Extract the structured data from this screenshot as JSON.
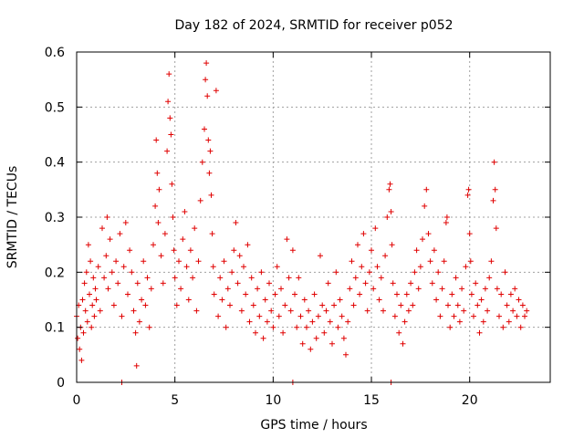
{
  "chart_data": {
    "type": "scatter",
    "title": "Day 182 of 2024, SRMTID for receiver p052",
    "xlabel": "GPS time / hours",
    "ylabel": "SRMTID / TECUs",
    "xlim": [
      0,
      24.1
    ],
    "ylim": [
      0,
      0.6
    ],
    "xticks": [
      0,
      5,
      10,
      15,
      20
    ],
    "yticks": [
      0,
      0.1,
      0.2,
      0.3,
      0.4,
      0.5,
      0.6
    ],
    "xtick_labels": [
      "0",
      "5",
      "10",
      "15",
      "20"
    ],
    "ytick_labels": [
      "0",
      "0.1",
      "0.2",
      "0.3",
      "0.4",
      "0.5",
      "0.6"
    ],
    "grid": true,
    "marker": "+",
    "color": "#e00000",
    "series": [
      {
        "name": "SRMTID",
        "points": [
          [
            0.0,
            0.12
          ],
          [
            0.05,
            0.08
          ],
          [
            0.1,
            0.14
          ],
          [
            0.15,
            0.06
          ],
          [
            0.2,
            0.1
          ],
          [
            0.25,
            0.04
          ],
          [
            0.3,
            0.15
          ],
          [
            0.35,
            0.09
          ],
          [
            0.4,
            0.18
          ],
          [
            0.45,
            0.13
          ],
          [
            0.5,
            0.2
          ],
          [
            0.55,
            0.11
          ],
          [
            0.6,
            0.25
          ],
          [
            0.65,
            0.16
          ],
          [
            0.7,
            0.22
          ],
          [
            0.75,
            0.1
          ],
          [
            0.8,
            0.14
          ],
          [
            0.85,
            0.19
          ],
          [
            0.9,
            0.12
          ],
          [
            0.95,
            0.17
          ],
          [
            1.0,
            0.15
          ],
          [
            1.1,
            0.21
          ],
          [
            1.2,
            0.13
          ],
          [
            1.3,
            0.28
          ],
          [
            1.4,
            0.19
          ],
          [
            1.5,
            0.23
          ],
          [
            1.55,
            0.3
          ],
          [
            1.6,
            0.17
          ],
          [
            1.7,
            0.26
          ],
          [
            1.8,
            0.2
          ],
          [
            1.9,
            0.14
          ],
          [
            2.0,
            0.22
          ],
          [
            2.1,
            0.18
          ],
          [
            2.2,
            0.27
          ],
          [
            2.3,
            0.12
          ],
          [
            2.4,
            0.21
          ],
          [
            2.5,
            0.29
          ],
          [
            2.6,
            0.16
          ],
          [
            2.7,
            0.24
          ],
          [
            2.8,
            0.2
          ],
          [
            2.9,
            0.13
          ],
          [
            3.0,
            0.09
          ],
          [
            3.05,
            0.03
          ],
          [
            3.1,
            0.18
          ],
          [
            3.2,
            0.11
          ],
          [
            3.3,
            0.15
          ],
          [
            3.4,
            0.22
          ],
          [
            3.5,
            0.14
          ],
          [
            3.6,
            0.19
          ],
          [
            3.7,
            0.1
          ],
          [
            3.8,
            0.17
          ],
          [
            3.9,
            0.25
          ],
          [
            4.0,
            0.32
          ],
          [
            4.05,
            0.44
          ],
          [
            4.1,
            0.38
          ],
          [
            4.15,
            0.29
          ],
          [
            4.2,
            0.35
          ],
          [
            4.3,
            0.23
          ],
          [
            4.4,
            0.18
          ],
          [
            4.5,
            0.27
          ],
          [
            4.6,
            0.42
          ],
          [
            4.65,
            0.51
          ],
          [
            4.7,
            0.56
          ],
          [
            4.75,
            0.48
          ],
          [
            4.8,
            0.45
          ],
          [
            4.85,
            0.36
          ],
          [
            4.9,
            0.3
          ],
          [
            4.95,
            0.24
          ],
          [
            5.0,
            0.19
          ],
          [
            5.1,
            0.14
          ],
          [
            5.2,
            0.22
          ],
          [
            5.3,
            0.17
          ],
          [
            5.4,
            0.26
          ],
          [
            5.5,
            0.31
          ],
          [
            5.6,
            0.21
          ],
          [
            5.7,
            0.15
          ],
          [
            5.8,
            0.24
          ],
          [
            5.9,
            0.19
          ],
          [
            6.0,
            0.28
          ],
          [
            6.1,
            0.13
          ],
          [
            6.2,
            0.22
          ],
          [
            6.3,
            0.33
          ],
          [
            6.4,
            0.4
          ],
          [
            6.5,
            0.46
          ],
          [
            6.55,
            0.55
          ],
          [
            6.6,
            0.58
          ],
          [
            6.65,
            0.52
          ],
          [
            6.7,
            0.44
          ],
          [
            6.75,
            0.38
          ],
          [
            6.8,
            0.42
          ],
          [
            6.85,
            0.34
          ],
          [
            6.9,
            0.27
          ],
          [
            6.95,
            0.21
          ],
          [
            7.0,
            0.16
          ],
          [
            7.1,
            0.53
          ],
          [
            7.2,
            0.12
          ],
          [
            7.3,
            0.19
          ],
          [
            7.4,
            0.15
          ],
          [
            7.5,
            0.22
          ],
          [
            7.6,
            0.1
          ],
          [
            7.7,
            0.17
          ],
          [
            7.8,
            0.14
          ],
          [
            7.9,
            0.2
          ],
          [
            8.0,
            0.24
          ],
          [
            8.1,
            0.29
          ],
          [
            8.2,
            0.18
          ],
          [
            8.3,
            0.23
          ],
          [
            8.4,
            0.13
          ],
          [
            8.5,
            0.21
          ],
          [
            8.6,
            0.16
          ],
          [
            8.7,
            0.25
          ],
          [
            8.8,
            0.11
          ],
          [
            8.9,
            0.19
          ],
          [
            9.0,
            0.14
          ],
          [
            9.1,
            0.09
          ],
          [
            9.2,
            0.17
          ],
          [
            9.3,
            0.12
          ],
          [
            9.4,
            0.2
          ],
          [
            9.5,
            0.08
          ],
          [
            9.6,
            0.15
          ],
          [
            9.7,
            0.11
          ],
          [
            9.8,
            0.18
          ],
          [
            9.9,
            0.13
          ],
          [
            10.0,
            0.1
          ],
          [
            10.1,
            0.16
          ],
          [
            10.2,
            0.21
          ],
          [
            10.3,
            0.12
          ],
          [
            10.4,
            0.17
          ],
          [
            10.5,
            0.09
          ],
          [
            10.6,
            0.14
          ],
          [
            10.7,
            0.26
          ],
          [
            10.8,
            0.19
          ],
          [
            10.9,
            0.13
          ],
          [
            11.0,
            0.24
          ],
          [
            11.1,
            0.16
          ],
          [
            11.2,
            0.1
          ],
          [
            11.3,
            0.19
          ],
          [
            11.4,
            0.12
          ],
          [
            11.5,
            0.07
          ],
          [
            11.6,
            0.15
          ],
          [
            11.7,
            0.1
          ],
          [
            11.8,
            0.13
          ],
          [
            11.9,
            0.06
          ],
          [
            12.0,
            0.11
          ],
          [
            12.1,
            0.16
          ],
          [
            12.2,
            0.08
          ],
          [
            12.3,
            0.12
          ],
          [
            12.4,
            0.23
          ],
          [
            12.5,
            0.14
          ],
          [
            12.6,
            0.09
          ],
          [
            12.7,
            0.13
          ],
          [
            12.8,
            0.18
          ],
          [
            12.9,
            0.11
          ],
          [
            13.0,
            0.07
          ],
          [
            13.1,
            0.14
          ],
          [
            13.2,
            0.2
          ],
          [
            13.3,
            0.1
          ],
          [
            13.4,
            0.15
          ],
          [
            13.5,
            0.12
          ],
          [
            13.6,
            0.08
          ],
          [
            13.7,
            0.05
          ],
          [
            13.8,
            0.11
          ],
          [
            13.9,
            0.17
          ],
          [
            14.0,
            0.22
          ],
          [
            14.1,
            0.14
          ],
          [
            14.2,
            0.19
          ],
          [
            14.3,
            0.25
          ],
          [
            14.4,
            0.16
          ],
          [
            14.5,
            0.21
          ],
          [
            14.6,
            0.27
          ],
          [
            14.7,
            0.18
          ],
          [
            14.8,
            0.13
          ],
          [
            14.9,
            0.2
          ],
          [
            15.0,
            0.24
          ],
          [
            15.1,
            0.17
          ],
          [
            15.2,
            0.28
          ],
          [
            15.3,
            0.21
          ],
          [
            15.4,
            0.15
          ],
          [
            15.5,
            0.19
          ],
          [
            15.6,
            0.13
          ],
          [
            15.7,
            0.23
          ],
          [
            15.8,
            0.3
          ],
          [
            15.9,
            0.35
          ],
          [
            15.95,
            0.36
          ],
          [
            16.0,
            0.31
          ],
          [
            16.05,
            0.25
          ],
          [
            16.1,
            0.18
          ],
          [
            16.2,
            0.12
          ],
          [
            16.3,
            0.16
          ],
          [
            16.4,
            0.09
          ],
          [
            16.5,
            0.14
          ],
          [
            16.6,
            0.07
          ],
          [
            16.7,
            0.11
          ],
          [
            16.8,
            0.16
          ],
          [
            16.9,
            0.13
          ],
          [
            17.0,
            0.18
          ],
          [
            17.1,
            0.14
          ],
          [
            17.2,
            0.2
          ],
          [
            17.3,
            0.24
          ],
          [
            17.4,
            0.17
          ],
          [
            17.5,
            0.21
          ],
          [
            17.6,
            0.26
          ],
          [
            17.7,
            0.32
          ],
          [
            17.8,
            0.35
          ],
          [
            17.9,
            0.27
          ],
          [
            18.0,
            0.22
          ],
          [
            18.1,
            0.18
          ],
          [
            18.2,
            0.24
          ],
          [
            18.3,
            0.15
          ],
          [
            18.4,
            0.2
          ],
          [
            18.5,
            0.12
          ],
          [
            18.6,
            0.17
          ],
          [
            18.7,
            0.22
          ],
          [
            18.8,
            0.29
          ],
          [
            18.85,
            0.3
          ],
          [
            18.9,
            0.14
          ],
          [
            19.0,
            0.1
          ],
          [
            19.1,
            0.16
          ],
          [
            19.2,
            0.12
          ],
          [
            19.3,
            0.19
          ],
          [
            19.4,
            0.14
          ],
          [
            19.5,
            0.11
          ],
          [
            19.6,
            0.17
          ],
          [
            19.7,
            0.13
          ],
          [
            19.8,
            0.21
          ],
          [
            19.9,
            0.34
          ],
          [
            19.95,
            0.35
          ],
          [
            20.0,
            0.27
          ],
          [
            20.05,
            0.22
          ],
          [
            20.1,
            0.16
          ],
          [
            20.2,
            0.12
          ],
          [
            20.3,
            0.18
          ],
          [
            20.4,
            0.14
          ],
          [
            20.5,
            0.09
          ],
          [
            20.6,
            0.15
          ],
          [
            20.7,
            0.11
          ],
          [
            20.8,
            0.17
          ],
          [
            20.9,
            0.13
          ],
          [
            21.0,
            0.19
          ],
          [
            21.1,
            0.22
          ],
          [
            21.2,
            0.33
          ],
          [
            21.25,
            0.4
          ],
          [
            21.3,
            0.35
          ],
          [
            21.35,
            0.28
          ],
          [
            21.4,
            0.17
          ],
          [
            21.5,
            0.12
          ],
          [
            21.6,
            0.16
          ],
          [
            21.7,
            0.1
          ],
          [
            21.8,
            0.2
          ],
          [
            21.9,
            0.14
          ],
          [
            22.0,
            0.11
          ],
          [
            22.1,
            0.16
          ],
          [
            22.2,
            0.13
          ],
          [
            22.3,
            0.17
          ],
          [
            22.4,
            0.12
          ],
          [
            22.5,
            0.15
          ],
          [
            22.6,
            0.1
          ],
          [
            22.7,
            0.14
          ],
          [
            22.8,
            0.12
          ],
          [
            22.9,
            0.13
          ],
          [
            2.3,
            0.0
          ],
          [
            11.0,
            0.0
          ],
          [
            16.0,
            0.0
          ]
        ]
      }
    ]
  }
}
